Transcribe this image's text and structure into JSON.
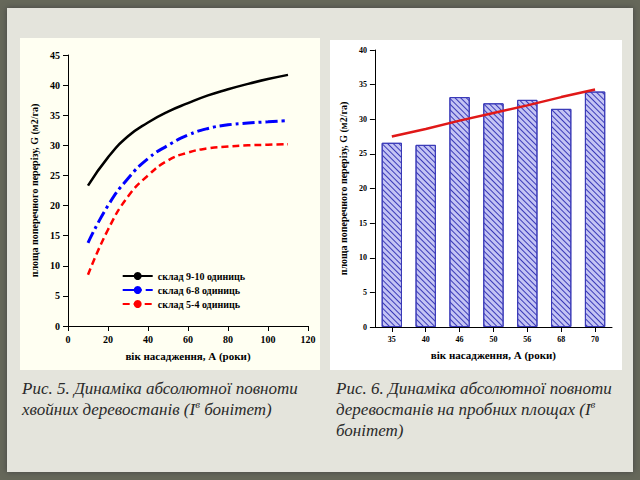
{
  "chart_data": [
    {
      "type": "line",
      "x_label": "вік насадження, А (роки)",
      "y_label": "площа поперечного перерізу, G (м2/га)",
      "x": [
        10,
        20,
        30,
        40,
        50,
        60,
        70,
        80,
        90,
        100,
        110
      ],
      "xlim": [
        0,
        120
      ],
      "xticks": [
        0,
        20,
        40,
        60,
        80,
        100,
        120
      ],
      "ylim": [
        0,
        45
      ],
      "yticks": [
        0,
        5,
        10,
        15,
        20,
        25,
        30,
        35,
        40,
        45
      ],
      "grid": false,
      "legend": "lower right",
      "series": [
        {
          "name": "склад 9-10 одиниць",
          "color": "#000000",
          "line_style": "solid",
          "values": [
            23.3,
            28.0,
            31.5,
            33.8,
            35.6,
            37.0,
            38.3,
            39.3,
            40.2,
            41.0,
            41.7
          ]
        },
        {
          "name": "склад 6-8 одиниць",
          "color": "#0000ff",
          "line_style": "dashdot",
          "values": [
            13.8,
            20.0,
            24.5,
            27.8,
            30.0,
            31.7,
            32.8,
            33.4,
            33.7,
            33.9,
            34.1
          ]
        },
        {
          "name": "склад 5-4 одиниць",
          "color": "#ff0000",
          "line_style": "dashed",
          "values": [
            8.5,
            16.0,
            21.5,
            25.0,
            27.5,
            28.8,
            29.5,
            29.8,
            30.0,
            30.1,
            30.2
          ]
        }
      ]
    },
    {
      "type": "bar",
      "x_label": "вік насадження, А (роки)",
      "y_label": "площа поперечного перерізу, G (м2/га)",
      "categories": [
        "35",
        "40",
        "46",
        "50",
        "56",
        "68",
        "70"
      ],
      "ylim": [
        0,
        40
      ],
      "yticks": [
        0,
        5,
        10,
        15,
        20,
        25,
        30,
        35,
        40
      ],
      "grid": false,
      "series": [
        {
          "type": "bar",
          "color": "#3a3ab8",
          "values": [
            26.6,
            26.3,
            33.2,
            32.3,
            32.8,
            31.5,
            34.0
          ]
        },
        {
          "type": "line",
          "color": "#e01818",
          "line_style": "solid",
          "values": [
            27.5,
            28.6,
            29.8,
            30.9,
            32.0,
            33.2,
            34.3
          ]
        }
      ]
    }
  ],
  "captions": [
    {
      "text": "Рис. 5. Динаміка абсолютної повноти хвойних деревостанів (I",
      "superscript": "в",
      "after": " бонітет)"
    },
    {
      "text": "Рис. 6. Динаміка абсолютної повноти деревостанів на пробних площах (I",
      "superscript": "в",
      "after": " бонітет)"
    }
  ]
}
